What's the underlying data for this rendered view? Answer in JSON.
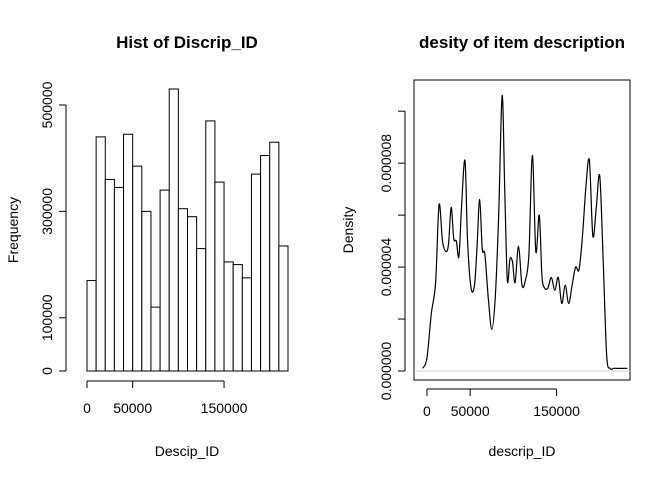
{
  "chart_data": [
    {
      "type": "bar",
      "title": "Hist of Discrip_ID",
      "xlabel": "Descip_ID",
      "ylabel": "Frequency",
      "bin_edges": [
        0,
        10000,
        20000,
        30000,
        40000,
        50000,
        60000,
        70000,
        80000,
        90000,
        100000,
        110000,
        120000,
        130000,
        140000,
        150000,
        160000,
        170000,
        180000,
        190000,
        200000,
        210000,
        220000
      ],
      "values": [
        170000,
        440000,
        360000,
        345000,
        445000,
        385000,
        300000,
        120000,
        340000,
        530000,
        305000,
        290000,
        230000,
        470000,
        355000,
        205000,
        200000,
        175000,
        370000,
        405000,
        430000,
        235000
      ],
      "xlim": [
        0,
        220000
      ],
      "ylim": [
        0,
        530000
      ],
      "x_ticks": [
        0,
        50000,
        150000
      ],
      "x_tick_labels": [
        "0",
        "50000",
        "150000"
      ],
      "y_ticks": [
        0,
        100000,
        300000,
        500000
      ],
      "y_tick_labels": [
        "0",
        "100000",
        "300000",
        "500000"
      ]
    },
    {
      "type": "line",
      "title": "desity of item description",
      "xlabel": "descrip_ID",
      "ylabel": "Density",
      "x": [
        -5000,
        0,
        5000,
        10000,
        14000,
        18000,
        22000,
        25000,
        28000,
        31000,
        34000,
        37000,
        40000,
        44000,
        47000,
        51000,
        55000,
        58000,
        61000,
        64000,
        67000,
        71000,
        75000,
        79000,
        83000,
        87000,
        90000,
        93000,
        96000,
        99000,
        102000,
        106000,
        110000,
        114000,
        118000,
        122000,
        126000,
        130000,
        133000,
        136000,
        140000,
        144000,
        148000,
        152000,
        156000,
        160000,
        164000,
        168000,
        172000,
        176000,
        180000,
        184000,
        188000,
        192000,
        196000,
        200000,
        204000,
        208000,
        212000,
        216000,
        220000,
        224000,
        228000,
        232000
      ],
      "y": [
        1e-07,
        5e-07,
        2.2e-06,
        3.4e-06,
        6.4e-06,
        5e-06,
        4.6e-06,
        4.9e-06,
        6.3e-06,
        5.1e-06,
        5e-06,
        4.4e-06,
        6.3e-06,
        8.1e-06,
        5e-06,
        3.2e-06,
        3.3e-06,
        4.8e-06,
        6.6e-06,
        4.7e-06,
        4.5e-06,
        2.8e-06,
        1.6e-06,
        2.8e-06,
        6e-06,
        1.06e-05,
        7e-06,
        3.5e-06,
        4.3e-06,
        4.2e-06,
        3.4e-06,
        4.8e-06,
        3.3e-06,
        3.5e-06,
        4.5e-06,
        8.3e-06,
        4.6e-06,
        6e-06,
        3.7e-06,
        3.2e-06,
        3.2e-06,
        3.6e-06,
        3.1e-06,
        3.6e-06,
        2.6e-06,
        3.3e-06,
        2.6e-06,
        3.3e-06,
        4e-06,
        3.9e-06,
        5.2e-06,
        7.1e-06,
        8.1e-06,
        5.2e-06,
        6.3e-06,
        7.5e-06,
        4.2e-06,
        6e-07,
        1e-07,
        1e-07,
        1e-07,
        1e-07,
        1e-07,
        1e-07
      ],
      "xlim": [
        -15000,
        235000
      ],
      "ylim": [
        0,
        1.12e-05
      ],
      "x_ticks": [
        0,
        50000,
        150000
      ],
      "x_tick_labels": [
        "0",
        "50000",
        "150000"
      ],
      "y_ticks": [
        0,
        2e-06,
        4e-06,
        6e-06,
        8e-06,
        1e-05
      ],
      "y_tick_labels": [
        "0.000000",
        "0.000004",
        "0.000008"
      ],
      "y_labeled_ticks": [
        0,
        4e-06,
        8e-06
      ]
    }
  ]
}
